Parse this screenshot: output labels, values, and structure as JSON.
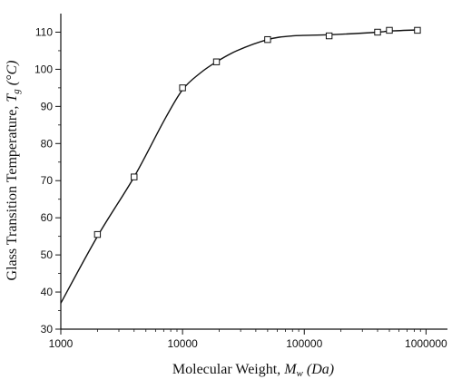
{
  "chart_data": {
    "type": "scatter",
    "x_scale": "log",
    "xlim": [
      1000,
      1500000
    ],
    "ylim": [
      30,
      115
    ],
    "x_ticks": [
      1000,
      10000,
      100000,
      1000000
    ],
    "x_tick_labels": [
      "1000",
      "10000",
      "100000",
      "1000000"
    ],
    "y_ticks": [
      30,
      40,
      50,
      60,
      70,
      80,
      90,
      100,
      110
    ],
    "y_tick_labels": [
      "30",
      "40",
      "50",
      "60",
      "70",
      "80",
      "90",
      "100",
      "110"
    ],
    "xlabel": {
      "text": "Molecular Weight, ",
      "symbol": "M",
      "subscript": "w",
      "unit": " (Da)"
    },
    "ylabel": {
      "text": "Glass Transition Temperature, ",
      "symbol": "T",
      "subscript": "g",
      "unit": " (°C)"
    },
    "grid": false,
    "legend": "none",
    "series": [
      {
        "marker": "open-square",
        "x": [
          2000,
          4000,
          10000,
          19000,
          50000,
          160000,
          400000,
          500000,
          850000
        ],
        "y": [
          55.5,
          71,
          95,
          102,
          108,
          109,
          110,
          110.5,
          110.5
        ]
      }
    ],
    "fit_curve": {
      "style": "smooth-line",
      "x": [
        1000,
        2000,
        4000,
        7000,
        10000,
        14000,
        19000,
        28000,
        50000,
        80000,
        160000,
        400000,
        500000,
        850000
      ],
      "y": [
        37,
        55,
        71,
        86,
        94.5,
        99,
        102,
        105,
        108,
        109,
        109.3,
        110,
        110.3,
        110.6
      ]
    },
    "colors": {
      "axis": "#111111",
      "line": "#111111",
      "marker_fill": "#ffffff"
    }
  }
}
